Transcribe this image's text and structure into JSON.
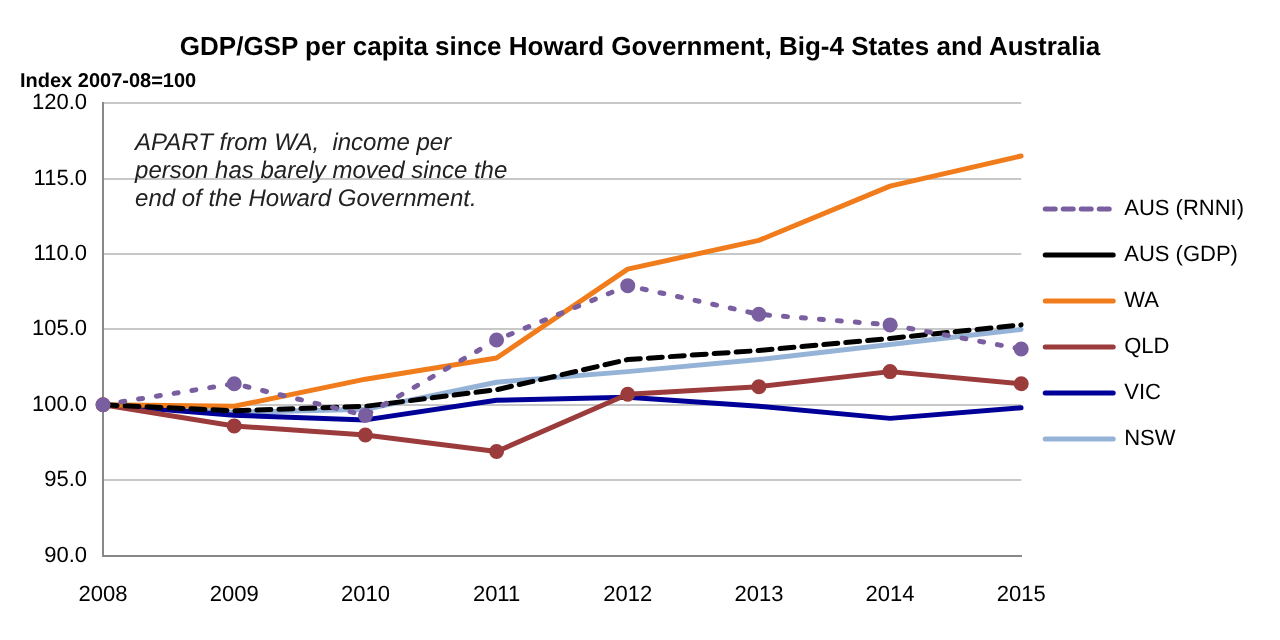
{
  "chart_data": {
    "type": "line",
    "title": "GDP/GSP per capita since Howard Government, Big-4 States and Australia",
    "ylabel": "Index 2007-08=100",
    "annotations": [
      "APART from WA,  income per person has barely moved since the end of the Howard Government."
    ],
    "categories": [
      "2008",
      "2009",
      "2010",
      "2011",
      "2012",
      "2013",
      "2014",
      "2015"
    ],
    "series": [
      {
        "name": "NSW",
        "color": "#95b3d7",
        "marker": "none",
        "line_style": "solid",
        "values": [
          100,
          99.5,
          99.7,
          101.5,
          102.2,
          103,
          104,
          105
        ]
      },
      {
        "name": "VIC",
        "color": "#000099",
        "marker": "none",
        "line_style": "solid",
        "values": [
          100,
          99.3,
          99,
          100.3,
          100.5,
          99.9,
          99.1,
          99.8
        ]
      },
      {
        "name": "QLD",
        "color": "#9b3b3b",
        "marker": "circle",
        "line_style": "solid",
        "values": [
          100,
          98.6,
          98,
          96.9,
          100.7,
          101.2,
          102.2,
          101.4
        ]
      },
      {
        "name": "WA",
        "color": "#f07c1c",
        "marker": "none",
        "line_style": "solid",
        "values": [
          100,
          99.9,
          101.7,
          103.1,
          109,
          110.9,
          114.5,
          116.5
        ]
      },
      {
        "name": "AUS (GDP)",
        "color": "#000000",
        "marker": "none",
        "line_style": "dashed",
        "values": [
          100,
          99.6,
          99.9,
          101,
          103,
          103.6,
          104.4,
          105.3
        ]
      },
      {
        "name": "AUS (RNNI)",
        "color": "#7a5fa0",
        "marker": "circle",
        "line_style": "dotted",
        "values": [
          100,
          101.4,
          99.3,
          104.3,
          107.9,
          106,
          105.3,
          103.7
        ]
      }
    ],
    "ylim": [
      90,
      120
    ],
    "yticks": [
      {
        "value": 90,
        "label": "90.0"
      },
      {
        "value": 95,
        "label": "95.0"
      },
      {
        "value": 100,
        "label": "100.0"
      },
      {
        "value": 105,
        "label": "105.0"
      },
      {
        "value": 110,
        "label": "110.0"
      },
      {
        "value": 115,
        "label": "115.0"
      },
      {
        "value": 120,
        "label": "120.0"
      }
    ],
    "grid": "y",
    "legend": "right"
  }
}
